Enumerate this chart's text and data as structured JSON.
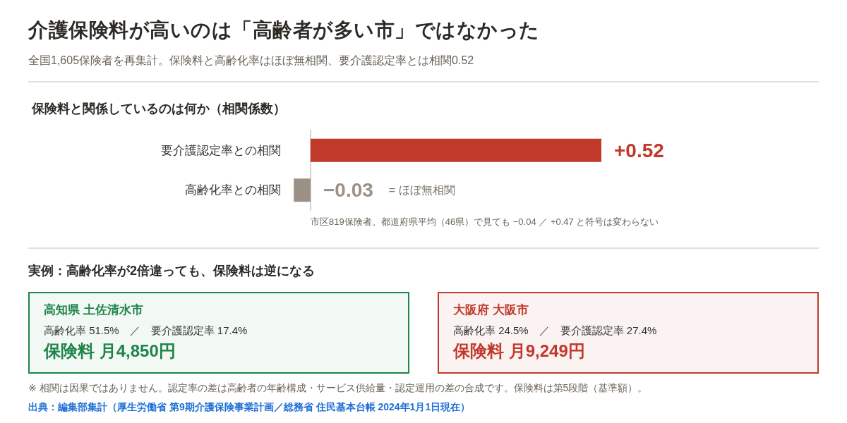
{
  "chart_data": [
    {
      "type": "other",
      "title": "介護保険料が高いのは「高齢者が多い市」ではなかった",
      "subtitle": "全国1,605保険者を再集計。保険料と高齢化率はほぼ無相関、要介護認定率とは相関0.52"
    },
    {
      "type": "bar",
      "orientation": "horizontal",
      "title": "保険料と関係しているのは何か（相関係数）",
      "categories": [
        "要介護認定率との相関",
        "高齢化率との相関"
      ],
      "values": [
        0.52,
        -0.03
      ],
      "colors": [
        "#c0392b",
        "#9b9086"
      ],
      "value_labels": [
        "+0.52",
        "−0.03"
      ],
      "tick_labels": "y",
      "annotations": [
        "= ほぼ無相関",
        "市区819保険者。都道府県平均（46県）で見ても −0.04 ／ +0.47 と符号は変わらない"
      ]
    },
    {
      "type": "other",
      "title": "実例：高齢化率が2倍違っても、保険料は逆になる"
    },
    {
      "type": "other",
      "title": "高知県 土佐清水市",
      "annotations": [
        "高齢化率 51.5%　／　要介護認定率 17.4%",
        "保険料 月4,850円"
      ],
      "color": "#1e8449"
    },
    {
      "type": "other",
      "title": "大阪府 大阪市",
      "annotations": [
        "高齢化率 24.5%　／　要介護認定率 27.4%",
        "保険料 月9,249円"
      ],
      "color": "#c0392b"
    },
    {
      "type": "other",
      "annotations": [
        "※ 相関は因果ではありません。認定率の差は高齢者の年齢構成・サービス供給量・認定運用の差の合成です。保険料は第5段階（基準額）。",
        "出典：編集部集計（厚生労働省 第9期介護保険事業計画／総務省 住民基本台帳 2024年1月1日現在）"
      ]
    }
  ]
}
